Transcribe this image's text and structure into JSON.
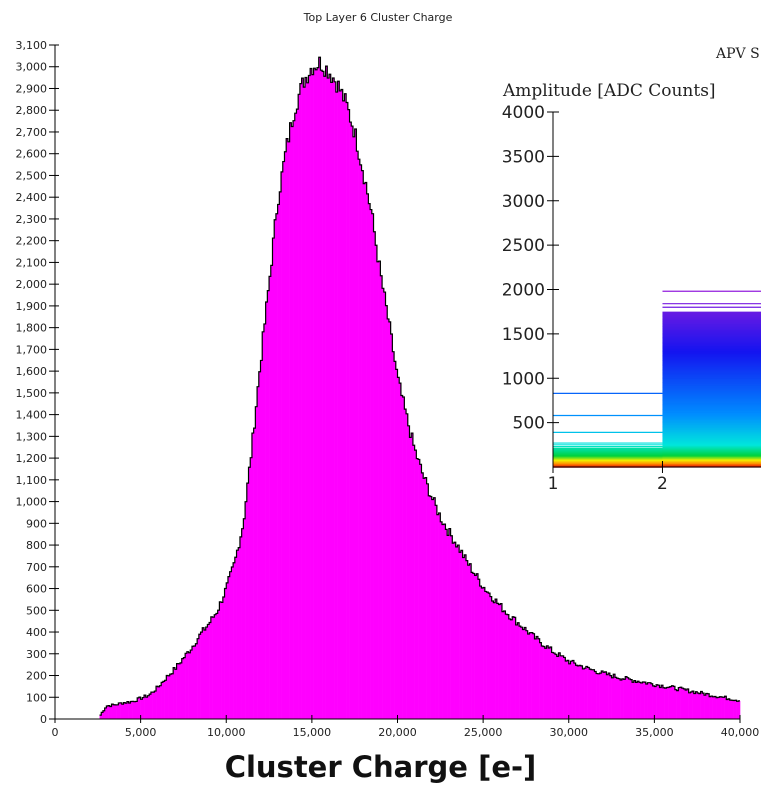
{
  "chart_data": [
    {
      "type": "bar",
      "title": "Top Layer 6 Cluster Charge",
      "xlabel": "Cluster Charge [e-]",
      "ylabel": "",
      "xlim": [
        0,
        40000
      ],
      "ylim": [
        0,
        3100
      ],
      "x_ticks": [
        "0",
        "5,000",
        "10,000",
        "15,000",
        "20,000",
        "25,000",
        "30,000",
        "35,000",
        "40,000"
      ],
      "y_ticks": [
        "0",
        "100",
        "200",
        "300",
        "400",
        "500",
        "600",
        "700",
        "800",
        "900",
        "1,000",
        "1,100",
        "1,200",
        "1,300",
        "1,400",
        "1,500",
        "1,600",
        "1,700",
        "1,800",
        "1,900",
        "2,000",
        "2,100",
        "2,200",
        "2,300",
        "2,400",
        "2,500",
        "2,600",
        "2,700",
        "2,800",
        "2,900",
        "3,000",
        "3,100"
      ],
      "grid": false,
      "bar_color": "#ff00ff",
      "outline_color": "#000000",
      "series": [
        {
          "x": [
            2500,
            3000,
            3500,
            4000,
            4500,
            5000,
            5500,
            6000,
            6500,
            7000,
            7500,
            8000,
            8500,
            9000,
            9500,
            10000,
            10500,
            11000,
            11500,
            12000,
            12500,
            13000,
            13500,
            14000,
            14500,
            15000,
            15500,
            16000,
            16500,
            17000,
            17500,
            18000,
            18500,
            19000,
            19500,
            20000,
            20500,
            21000,
            21500,
            22000,
            22500,
            23000,
            23500,
            24000,
            24500,
            25000,
            25500,
            26000,
            26500,
            27000,
            27500,
            28000,
            28500,
            29000,
            29500,
            30000,
            31000,
            32000,
            33000,
            34000,
            35000,
            36000,
            37000,
            38000,
            39000,
            40000
          ],
          "values": [
            0,
            60,
            65,
            75,
            80,
            95,
            110,
            145,
            190,
            230,
            280,
            330,
            390,
            440,
            500,
            600,
            720,
            900,
            1250,
            1640,
            2000,
            2380,
            2620,
            2810,
            2930,
            3000,
            3020,
            2980,
            2920,
            2830,
            2700,
            2520,
            2320,
            2050,
            1820,
            1570,
            1400,
            1240,
            1120,
            1020,
            930,
            860,
            800,
            730,
            670,
            610,
            565,
            520,
            480,
            445,
            410,
            375,
            345,
            315,
            290,
            265,
            235,
            210,
            190,
            175,
            160,
            145,
            130,
            115,
            100,
            85
          ]
        }
      ]
    },
    {
      "type": "line",
      "title": "APV S",
      "ylabel": "Amplitude [ADC Counts]",
      "xlabel": "",
      "x_ticks": [
        "1",
        "2"
      ],
      "y_ticks": [
        "500",
        "1000",
        "1500",
        "2000",
        "2500",
        "3000",
        "3500",
        "4000"
      ],
      "ylim": [
        0,
        4000
      ],
      "xlim": [
        1,
        2.9
      ],
      "bin1_levels": [
        830,
        580,
        390,
        270,
        250,
        230,
        210,
        190,
        170,
        150,
        130,
        110,
        95,
        80,
        65,
        50,
        40,
        30,
        20,
        10
      ],
      "bin2_max": 1980,
      "bin2_levels_sample": [
        1980,
        1840,
        1800,
        1700,
        1660,
        1620,
        1580,
        1500,
        1460,
        1400,
        1350,
        1300,
        1250,
        1200,
        1150,
        1100,
        1050,
        1000,
        950,
        900,
        850,
        800,
        750,
        700,
        650,
        600,
        550,
        500,
        450,
        400,
        350,
        300,
        250,
        200,
        150,
        100,
        60,
        30
      ]
    }
  ]
}
